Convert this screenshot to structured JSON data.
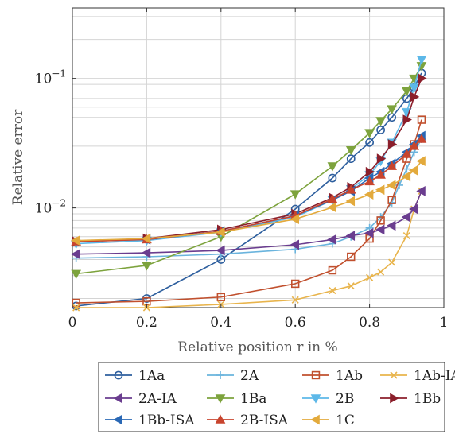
{
  "chart_data": {
    "type": "line",
    "title": "",
    "xlabel": "Relative position r in %",
    "ylabel": "Relative error",
    "xlim": [
      0,
      1
    ],
    "ylim": [
      0.0017,
      0.35
    ],
    "yscale": "log",
    "grid": true,
    "legend_position": "below",
    "x_ticks": [
      {
        "value": 0,
        "label": "0"
      },
      {
        "value": 0.2,
        "label": "0.2"
      },
      {
        "value": 0.4,
        "label": "0.4"
      },
      {
        "value": 0.6,
        "label": "0.6"
      },
      {
        "value": 0.8,
        "label": "0.8"
      },
      {
        "value": 1,
        "label": "1"
      }
    ],
    "y_ticks": [
      {
        "value": 0.01,
        "label": "10",
        "exp": "−2"
      },
      {
        "value": 0.1,
        "label": "10",
        "exp": "−1"
      }
    ],
    "series": [
      {
        "name": "1Aa",
        "color": "#2e5f9e",
        "marker": "circle",
        "x": [
          0.01,
          0.2,
          0.4,
          0.6,
          0.7,
          0.75,
          0.8,
          0.83,
          0.86,
          0.9,
          0.92,
          0.94
        ],
        "y": [
          0.00175,
          0.002,
          0.004,
          0.0098,
          0.017,
          0.024,
          0.032,
          0.04,
          0.05,
          0.07,
          0.085,
          0.11
        ]
      },
      {
        "name": "2A",
        "color": "#6ab4dd",
        "marker": "plus",
        "x": [
          0.01,
          0.2,
          0.4,
          0.6,
          0.7,
          0.75,
          0.8,
          0.83,
          0.86,
          0.88,
          0.9,
          0.92,
          0.94
        ],
        "y": [
          0.0041,
          0.0042,
          0.0044,
          0.0048,
          0.0053,
          0.006,
          0.007,
          0.0085,
          0.011,
          0.015,
          0.02,
          0.027,
          0.034
        ]
      },
      {
        "name": "1Ab",
        "color": "#c1502e",
        "marker": "square",
        "x": [
          0.01,
          0.2,
          0.4,
          0.6,
          0.7,
          0.75,
          0.8,
          0.83,
          0.86,
          0.9,
          0.92,
          0.94
        ],
        "y": [
          0.00185,
          0.0019,
          0.00205,
          0.0026,
          0.0033,
          0.0042,
          0.0058,
          0.008,
          0.0115,
          0.024,
          0.031,
          0.048
        ]
      },
      {
        "name": "1Ab-IA",
        "color": "#e8b44c",
        "marker": "cross",
        "x": [
          0.01,
          0.2,
          0.4,
          0.6,
          0.7,
          0.75,
          0.8,
          0.83,
          0.86,
          0.9,
          0.92,
          0.94
        ],
        "y": [
          0.0017,
          0.0017,
          0.0018,
          0.00195,
          0.0023,
          0.0025,
          0.0029,
          0.0032,
          0.0038,
          0.0061,
          0.0098,
          0.0135
        ]
      },
      {
        "name": "2A-IA",
        "color": "#6a3d8f",
        "marker": "triangle-left",
        "x": [
          0.01,
          0.2,
          0.4,
          0.6,
          0.7,
          0.75,
          0.8,
          0.83,
          0.86,
          0.9,
          0.92,
          0.94
        ],
        "y": [
          0.0044,
          0.0045,
          0.0047,
          0.0052,
          0.0057,
          0.0061,
          0.0064,
          0.0068,
          0.0073,
          0.0085,
          0.0098,
          0.0135
        ]
      },
      {
        "name": "1Ba",
        "color": "#7da33d",
        "marker": "triangle-down",
        "x": [
          0.01,
          0.2,
          0.4,
          0.6,
          0.7,
          0.75,
          0.8,
          0.83,
          0.86,
          0.9,
          0.92,
          0.94
        ],
        "y": [
          0.0031,
          0.0036,
          0.006,
          0.0128,
          0.021,
          0.028,
          0.038,
          0.047,
          0.058,
          0.08,
          0.1,
          0.125
        ]
      },
      {
        "name": "2B",
        "color": "#5db8e8",
        "marker": "triangle-down",
        "x": [
          0.01,
          0.2,
          0.4,
          0.6,
          0.7,
          0.75,
          0.8,
          0.83,
          0.86,
          0.9,
          0.92,
          0.94
        ],
        "y": [
          0.0053,
          0.0056,
          0.0065,
          0.0085,
          0.0115,
          0.014,
          0.018,
          0.023,
          0.032,
          0.055,
          0.085,
          0.14
        ]
      },
      {
        "name": "1Bb",
        "color": "#8b1f2b",
        "marker": "triangle-right",
        "x": [
          0.01,
          0.2,
          0.4,
          0.6,
          0.7,
          0.75,
          0.8,
          0.83,
          0.86,
          0.9,
          0.92,
          0.94
        ],
        "y": [
          0.0055,
          0.0058,
          0.0068,
          0.009,
          0.012,
          0.0145,
          0.019,
          0.024,
          0.031,
          0.048,
          0.072,
          0.1
        ]
      },
      {
        "name": "1Bb-ISA",
        "color": "#2a68b5",
        "marker": "triangle-left",
        "x": [
          0.01,
          0.2,
          0.4,
          0.6,
          0.7,
          0.75,
          0.8,
          0.83,
          0.86,
          0.9,
          0.92,
          0.94
        ],
        "y": [
          0.0055,
          0.0057,
          0.0066,
          0.0087,
          0.0115,
          0.0135,
          0.017,
          0.019,
          0.022,
          0.027,
          0.031,
          0.036
        ]
      },
      {
        "name": "2B-ISA",
        "color": "#c8452e",
        "marker": "triangle-up",
        "x": [
          0.01,
          0.2,
          0.4,
          0.6,
          0.7,
          0.75,
          0.8,
          0.83,
          0.86,
          0.9,
          0.92,
          0.94
        ],
        "y": [
          0.0055,
          0.0057,
          0.0066,
          0.0087,
          0.0117,
          0.0138,
          0.016,
          0.018,
          0.021,
          0.026,
          0.03,
          0.034
        ]
      },
      {
        "name": "1C",
        "color": "#e3aa3c",
        "marker": "triangle-left",
        "x": [
          0.01,
          0.2,
          0.4,
          0.6,
          0.7,
          0.75,
          0.8,
          0.83,
          0.86,
          0.9,
          0.92,
          0.94
        ],
        "y": [
          0.0056,
          0.0058,
          0.0065,
          0.0082,
          0.0101,
          0.0113,
          0.0127,
          0.0138,
          0.015,
          0.0175,
          0.0195,
          0.023
        ]
      }
    ]
  }
}
